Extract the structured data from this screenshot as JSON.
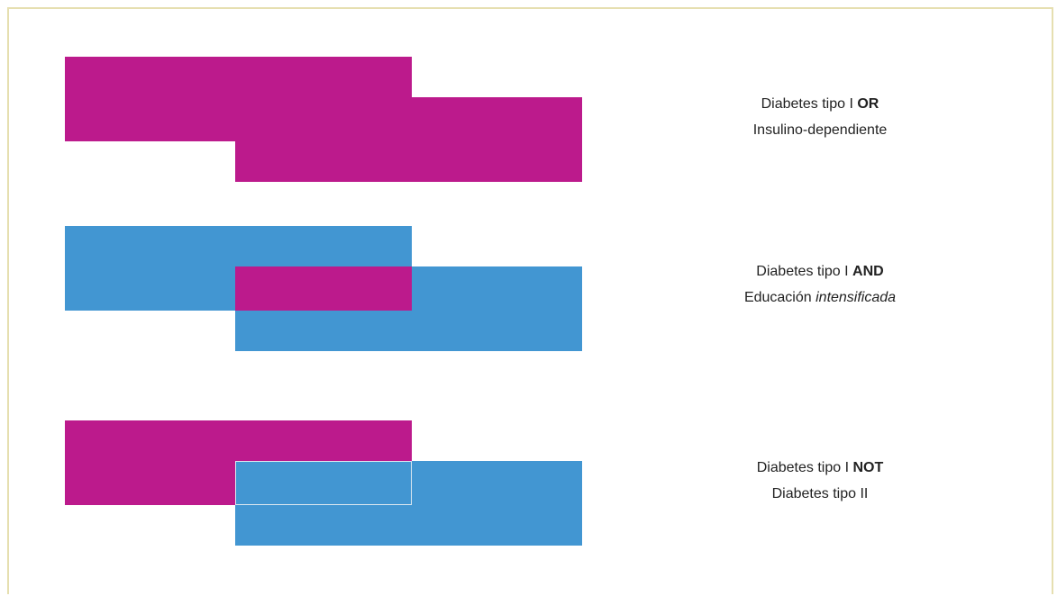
{
  "colors": {
    "magenta": "#BC1A8C",
    "blue": "#4296D2",
    "frame": "#E6DFB0",
    "outline": "#DDE8F0"
  },
  "diagrams": [
    {
      "operator": "OR",
      "line1_prefix": "Diabetes tipo I",
      "line1_operator": "OR",
      "line2_text": "Insulino-dependiente",
      "line2_emphasis": "",
      "set_a_color": "magenta",
      "set_b_color": "magenta",
      "intersection_color": "magenta"
    },
    {
      "operator": "AND",
      "line1_prefix": "Diabetes tipo I",
      "line1_operator": "AND",
      "line2_text": "Educación",
      "line2_emphasis": "intensificada",
      "set_a_color": "blue",
      "set_b_color": "blue",
      "intersection_color": "magenta"
    },
    {
      "operator": "NOT",
      "line1_prefix": "Diabetes tipo I",
      "line1_operator": "NOT",
      "line2_text": "Diabetes tipo II",
      "line2_emphasis": "",
      "set_a_color": "magenta",
      "set_b_color": "blue",
      "intersection_color": "blue"
    }
  ]
}
